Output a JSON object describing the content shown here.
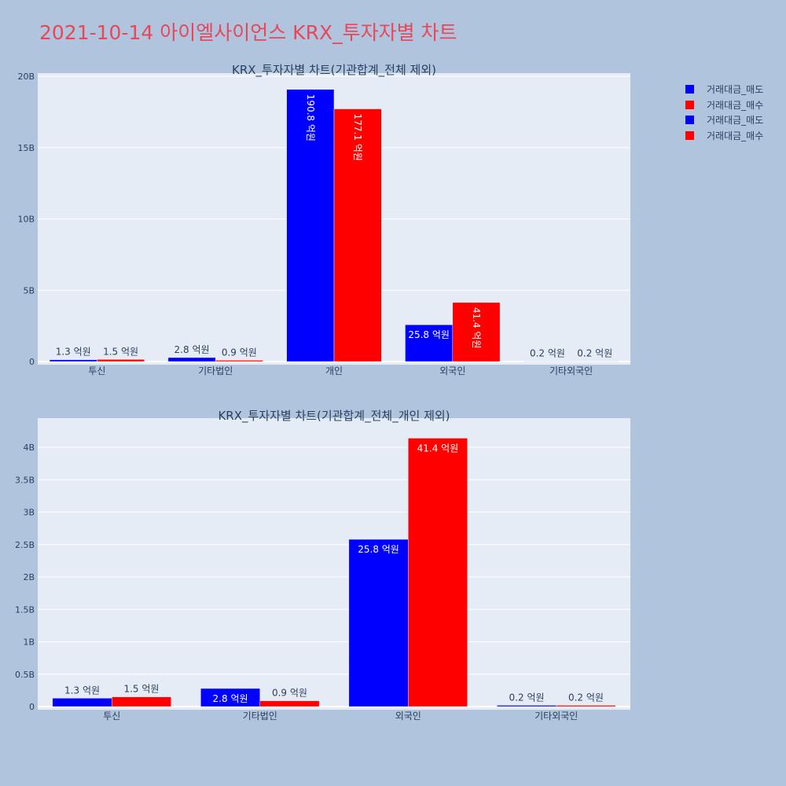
{
  "title": "2021-10-14 아이엘사이언스 KRX_투자자별 차트",
  "legend": [
    {
      "label": "거래대금_매도",
      "color": "#0000ff"
    },
    {
      "label": "거래대금_매수",
      "color": "#ff0000"
    },
    {
      "label": "거래대금_매도",
      "color": "#0000ff"
    },
    {
      "label": "거래대금_매수",
      "color": "#ff0000"
    }
  ],
  "chart_data": [
    {
      "type": "bar",
      "title": "KRX_투자자별 차트(기관합계_전체 제외)",
      "categories": [
        "투신",
        "기타법인",
        "개인",
        "외국인",
        "기타외국인"
      ],
      "series": [
        {
          "name": "거래대금_매도",
          "color": "#0000ff",
          "values": [
            130000000,
            280000000,
            19080000000,
            2580000000,
            20000000
          ],
          "labels": [
            "1.3 억원",
            "2.8 억원",
            "190.8 억원",
            "25.8 억원",
            "0.2 억원"
          ]
        },
        {
          "name": "거래대금_매수",
          "color": "#ff0000",
          "values": [
            150000000,
            90000000,
            17710000000,
            4140000000,
            20000000
          ],
          "labels": [
            "1.5 억원",
            "0.9 억원",
            "177.1 억원",
            "41.4 억원",
            "0.2 억원"
          ]
        }
      ],
      "ylim": [
        0,
        20000000000
      ],
      "yticks": [
        0,
        5000000000,
        10000000000,
        15000000000,
        20000000000
      ],
      "ytick_labels": [
        "0",
        "5B",
        "10B",
        "15B",
        "20B"
      ],
      "grid": true
    },
    {
      "type": "bar",
      "title": "KRX_투자자별 차트(기관합계_전체_개인 제외)",
      "categories": [
        "투신",
        "기타법인",
        "외국인",
        "기타외국인"
      ],
      "series": [
        {
          "name": "거래대금_매도",
          "color": "#0000ff",
          "values": [
            130000000,
            280000000,
            2580000000,
            20000000
          ],
          "labels": [
            "1.3 억원",
            "2.8 억원",
            "25.8 억원",
            "0.2 억원"
          ]
        },
        {
          "name": "거래대금_매수",
          "color": "#ff0000",
          "values": [
            150000000,
            90000000,
            4140000000,
            20000000
          ],
          "labels": [
            "1.5 억원",
            "0.9 억원",
            "41.4 억원",
            "0.2 억원"
          ]
        }
      ],
      "ylim": [
        0,
        4400000000
      ],
      "yticks": [
        0,
        500000000,
        1000000000,
        1500000000,
        2000000000,
        2500000000,
        3000000000,
        3500000000,
        4000000000
      ],
      "ytick_labels": [
        "0",
        "0.5B",
        "1B",
        "1.5B",
        "2B",
        "2.5B",
        "3B",
        "3.5B",
        "4B"
      ],
      "grid": true
    }
  ]
}
